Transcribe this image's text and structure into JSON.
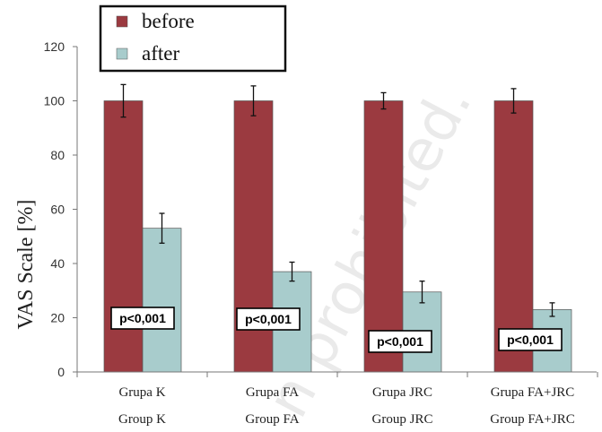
{
  "chart_data": {
    "type": "bar",
    "ylabel": "VAS Scale [%]",
    "ylim": [
      0,
      120
    ],
    "yticks": [
      0,
      20,
      40,
      60,
      80,
      100,
      120
    ],
    "categories": [
      {
        "line1": "Grupa K",
        "line2": "Group K"
      },
      {
        "line1": "Grupa FA",
        "line2": "Group FA"
      },
      {
        "line1": "Grupa JRC",
        "line2": "Group JRC"
      },
      {
        "line1": "Grupa FA+JRC",
        "line2": "Group FA+JRC"
      }
    ],
    "series": [
      {
        "name": "before",
        "color": "#9b3a40",
        "values": [
          100,
          100,
          100,
          100
        ],
        "errors": [
          6,
          5.5,
          3,
          4.5
        ]
      },
      {
        "name": "after",
        "color": "#a8cccc",
        "values": [
          53,
          37,
          29.5,
          23
        ],
        "errors": [
          5.5,
          3.5,
          4,
          2.5
        ]
      }
    ],
    "annotations": [
      "p<0,001",
      "p<0,001",
      "p<0,001",
      "p<0,001"
    ],
    "legend_position": "top-left",
    "watermark": "n prohibited."
  }
}
